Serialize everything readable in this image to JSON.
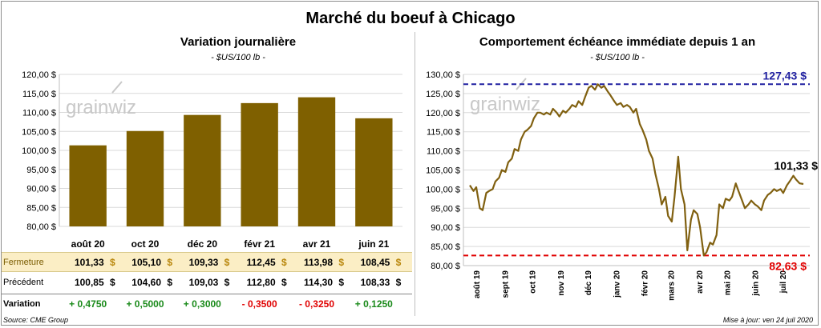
{
  "title": "Marché du boeuf à Chicago",
  "left": {
    "title": "Variation  journalière",
    "unit": "- $US/100 lb -"
  },
  "right": {
    "title": "Comportement  échéance immédiate depuis 1 an",
    "unit": "- $US/100 lb -"
  },
  "watermark": "grainwiz",
  "table": {
    "close_label": "Fermeture",
    "prev_label": "Précédent",
    "var_label": "Variation",
    "currency": "$",
    "close": [
      "101,33",
      "105,10",
      "109,33",
      "112,45",
      "113,98",
      "108,45"
    ],
    "prev": [
      "100,85",
      "104,60",
      "109,03",
      "112,80",
      "114,30",
      "108,33"
    ],
    "variation": [
      "+ 0,4750",
      "+ 0,5000",
      "+ 0,3000",
      "- 0,3500",
      "- 0,3250",
      "+ 0,1250"
    ]
  },
  "source": "Source: CME Group",
  "update": "Mise à jour: ven 24 juil 2020",
  "colors": {
    "bar": "#7f6000",
    "line": "#806010",
    "high": "#1f1fa0",
    "low": "#e00000",
    "pos": "#1a8a1a",
    "neg": "#e00000",
    "highlight": "#fbeec5"
  },
  "chart_data": [
    {
      "type": "bar",
      "title": "Variation  journalière",
      "ylabel": "$US/100 lb",
      "categories": [
        "août 20",
        "oct 20",
        "déc 20",
        "févr 21",
        "avr 21",
        "juin 21"
      ],
      "values": [
        101.33,
        105.1,
        109.33,
        112.45,
        113.98,
        108.45
      ],
      "ylim": [
        80,
        120
      ],
      "yticks": [
        "80,00 $",
        "85,00 $",
        "90,00 $",
        "95,00 $",
        "100,00 $",
        "105,00 $",
        "110,00 $",
        "115,00 $",
        "120,00 $"
      ],
      "grid": true
    },
    {
      "type": "line",
      "title": "Comportement  échéance immédiate depuis 1 an",
      "ylabel": "$US/100 lb",
      "ylim": [
        80,
        130
      ],
      "yticks": [
        "80,00 $",
        "85,00 $",
        "90,00 $",
        "95,00 $",
        "100,00 $",
        "105,00 $",
        "110,00 $",
        "115,00 $",
        "120,00 $",
        "125,00 $",
        "130,00 $"
      ],
      "xticks": [
        "août 19",
        "sept 19",
        "oct 19",
        "nov 19",
        "déc 19",
        "janv 20",
        "févr 20",
        "mars 20",
        "avr 20",
        "mai 20",
        "juin 20",
        "juil 20"
      ],
      "grid": true,
      "high": {
        "value": 127.43,
        "label": "127,43 $"
      },
      "low": {
        "value": 82.63,
        "label": "82,63 $"
      },
      "last": {
        "value": 101.33,
        "label": "101,33 $"
      },
      "series": [
        {
          "x": [
            "2019-07-25",
            "2019-07-29",
            "2019-08-01",
            "2019-08-05",
            "2019-08-08",
            "2019-08-12",
            "2019-08-15",
            "2019-08-19",
            "2019-08-22",
            "2019-08-26",
            "2019-08-29",
            "2019-09-02",
            "2019-09-05",
            "2019-09-09",
            "2019-09-12",
            "2019-09-16",
            "2019-09-19",
            "2019-09-23",
            "2019-09-26",
            "2019-09-30",
            "2019-10-03",
            "2019-10-07",
            "2019-10-10",
            "2019-10-14",
            "2019-10-17",
            "2019-10-21",
            "2019-10-24",
            "2019-10-28",
            "2019-10-31",
            "2019-11-04",
            "2019-11-07",
            "2019-11-11",
            "2019-11-14",
            "2019-11-18",
            "2019-11-21",
            "2019-11-25",
            "2019-11-28",
            "2019-12-02",
            "2019-12-05",
            "2019-12-09",
            "2019-12-12",
            "2019-12-16",
            "2019-12-19",
            "2019-12-23",
            "2019-12-26",
            "2019-12-30",
            "2020-01-02",
            "2020-01-06",
            "2020-01-09",
            "2020-01-13",
            "2020-01-16",
            "2020-01-20",
            "2020-01-23",
            "2020-01-27",
            "2020-01-30",
            "2020-02-03",
            "2020-02-06",
            "2020-02-10",
            "2020-02-13",
            "2020-02-17",
            "2020-02-20",
            "2020-02-24",
            "2020-02-27",
            "2020-03-02",
            "2020-03-05",
            "2020-03-09",
            "2020-03-12",
            "2020-03-16",
            "2020-03-19",
            "2020-03-23",
            "2020-03-26",
            "2020-03-30",
            "2020-04-02",
            "2020-04-06",
            "2020-04-09",
            "2020-04-13",
            "2020-04-16",
            "2020-04-20",
            "2020-04-23",
            "2020-04-27",
            "2020-04-30",
            "2020-05-04",
            "2020-05-07",
            "2020-05-11",
            "2020-05-14",
            "2020-05-18",
            "2020-05-21",
            "2020-05-25",
            "2020-05-28",
            "2020-06-01",
            "2020-06-04",
            "2020-06-08",
            "2020-06-11",
            "2020-06-15",
            "2020-06-18",
            "2020-06-22",
            "2020-06-25",
            "2020-06-29",
            "2020-07-02",
            "2020-07-06",
            "2020-07-09",
            "2020-07-13",
            "2020-07-16",
            "2020-07-20",
            "2020-07-24"
          ],
          "y": [
            101.0,
            99.5,
            100.5,
            95.0,
            94.5,
            99.0,
            99.5,
            100.0,
            102.0,
            103.0,
            105.0,
            104.5,
            107.0,
            108.0,
            110.5,
            110.0,
            113.0,
            115.0,
            115.5,
            116.5,
            118.5,
            120.0,
            120.0,
            119.5,
            120.0,
            119.5,
            121.0,
            120.0,
            119.0,
            120.5,
            120.0,
            121.0,
            122.0,
            121.5,
            123.0,
            122.0,
            124.0,
            126.5,
            127.0,
            126.0,
            127.43,
            126.5,
            127.0,
            125.5,
            124.5,
            123.0,
            122.0,
            122.5,
            121.5,
            122.0,
            121.5,
            120.0,
            121.0,
            117.0,
            115.5,
            113.0,
            110.0,
            108.0,
            104.0,
            100.0,
            96.0,
            98.0,
            93.0,
            91.5,
            98.0,
            108.5,
            100.0,
            96.0,
            84.0,
            92.0,
            94.5,
            93.5,
            90.0,
            82.63,
            83.5,
            86.0,
            85.5,
            88.0,
            96.0,
            95.0,
            97.5,
            97.0,
            98.0,
            101.5,
            99.5,
            97.0,
            95.0,
            96.0,
            97.0,
            96.0,
            95.5,
            94.5,
            97.0,
            98.5,
            99.0,
            100.0,
            99.5,
            100.0,
            99.0,
            101.0,
            102.0,
            103.5,
            102.5,
            101.5,
            101.33
          ]
        }
      ]
    }
  ]
}
